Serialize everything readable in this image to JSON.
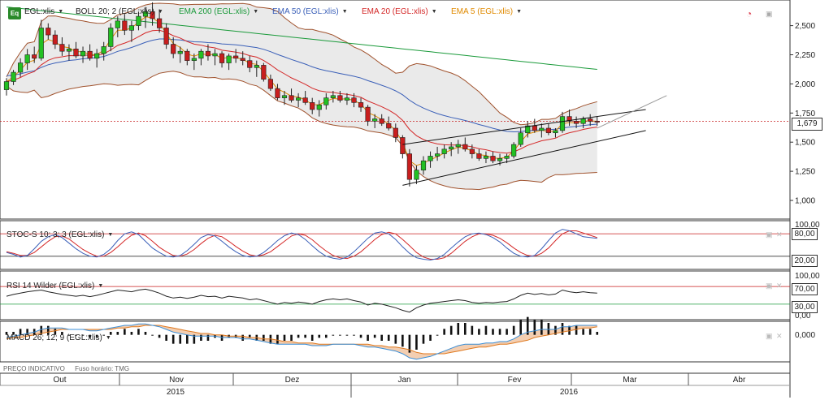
{
  "main_legend": {
    "symbol": "EGL:xlis",
    "items": [
      {
        "label": "BOLL 20; 2 (EGL:xlis)",
        "color": "#333333"
      },
      {
        "label": "EMA 200 (EGL:xlis)",
        "color": "#1a9a3a"
      },
      {
        "label": "EMA 50 (EGL:xlis)",
        "color": "#3a5fb8"
      },
      {
        "label": "EMA 20 (EGL:xlis)",
        "color": "#d42828"
      },
      {
        "label": "EMA 5 (EGL:xlis)",
        "color": "#e08a00"
      }
    ]
  },
  "badge": "Eq",
  "last_price_label": "1,679",
  "stoch": {
    "title": "STOC-S 10; 3; 3 (EGL:xlis)",
    "upper_label": "80,00",
    "lower_label": "20,00",
    "top_label": "100,00",
    "upper_level": 80,
    "lower_level": 20
  },
  "rsi": {
    "title": "RSI 14 Wilder (EGL:xlis)",
    "upper_label": "70,00",
    "lower_label": "30,00",
    "top_label": "100,00",
    "bottom_label": "0,00",
    "upper_level": 70,
    "lower_level": 30
  },
  "macd": {
    "title": "MACD 26; 12; 9 (EGL:xlis)",
    "zero_label": "0,000"
  },
  "footer": {
    "indicator": "PREÇO INDICATIVO",
    "timezone": "Fuso horário: TMG"
  },
  "x_axis": {
    "months": [
      "Out",
      "Nov",
      "Dez",
      "Jan",
      "Fev",
      "Mar",
      "Abr"
    ],
    "years": [
      "2015",
      "2016"
    ]
  },
  "colors": {
    "up": "#22c022",
    "down": "#c81e1e",
    "boll": "#a0522d",
    "boll_fill": "#e8e8e8",
    "ema200": "#1a9a3a",
    "ema50": "#3a5fb8",
    "ema20": "#d42828",
    "ema5": "#e08a00",
    "ref_line": "#c81e1e"
  },
  "chart_data": [
    {
      "type": "candlestick",
      "title": "EGL:xlis",
      "y_ticks": [
        "2,500",
        "2,250",
        "2,000",
        "1,750",
        "1,500",
        "1,250",
        "1,000"
      ],
      "ylim": [
        0.84,
        2.72
      ],
      "last_price": 1.679,
      "candles": [
        [
          1.95,
          2.05,
          1.9,
          2.02
        ],
        [
          2.02,
          2.12,
          1.99,
          2.1
        ],
        [
          2.1,
          2.22,
          2.06,
          2.18
        ],
        [
          2.18,
          2.3,
          2.12,
          2.25
        ],
        [
          2.25,
          2.32,
          2.18,
          2.22
        ],
        [
          2.22,
          2.55,
          2.2,
          2.48
        ],
        [
          2.48,
          2.52,
          2.38,
          2.42
        ],
        [
          2.42,
          2.46,
          2.3,
          2.34
        ],
        [
          2.34,
          2.4,
          2.24,
          2.28
        ],
        [
          2.28,
          2.34,
          2.2,
          2.3
        ],
        [
          2.3,
          2.36,
          2.22,
          2.24
        ],
        [
          2.24,
          2.32,
          2.18,
          2.28
        ],
        [
          2.28,
          2.34,
          2.2,
          2.22
        ],
        [
          2.22,
          2.3,
          2.14,
          2.26
        ],
        [
          2.26,
          2.36,
          2.2,
          2.32
        ],
        [
          2.32,
          2.52,
          2.28,
          2.48
        ],
        [
          2.48,
          2.58,
          2.4,
          2.54
        ],
        [
          2.54,
          2.6,
          2.42,
          2.46
        ],
        [
          2.46,
          2.54,
          2.36,
          2.5
        ],
        [
          2.5,
          2.62,
          2.46,
          2.58
        ],
        [
          2.58,
          2.66,
          2.48,
          2.62
        ],
        [
          2.62,
          2.7,
          2.5,
          2.56
        ],
        [
          2.56,
          2.64,
          2.44,
          2.48
        ],
        [
          2.48,
          2.52,
          2.3,
          2.34
        ],
        [
          2.34,
          2.4,
          2.22,
          2.26
        ],
        [
          2.26,
          2.32,
          2.18,
          2.28
        ],
        [
          2.28,
          2.3,
          2.16,
          2.2
        ],
        [
          2.2,
          2.26,
          2.12,
          2.22
        ],
        [
          2.22,
          2.3,
          2.16,
          2.28
        ],
        [
          2.28,
          2.34,
          2.2,
          2.24
        ],
        [
          2.24,
          2.3,
          2.16,
          2.26
        ],
        [
          2.26,
          2.28,
          2.14,
          2.18
        ],
        [
          2.18,
          2.26,
          2.12,
          2.24
        ],
        [
          2.24,
          2.3,
          2.18,
          2.22
        ],
        [
          2.22,
          2.28,
          2.16,
          2.2
        ],
        [
          2.2,
          2.24,
          2.1,
          2.14
        ],
        [
          2.14,
          2.2,
          2.06,
          2.16
        ],
        [
          2.16,
          2.18,
          2.02,
          2.04
        ],
        [
          2.04,
          2.08,
          1.94,
          1.96
        ],
        [
          1.96,
          2.0,
          1.86,
          1.88
        ],
        [
          1.88,
          1.94,
          1.82,
          1.9
        ],
        [
          1.9,
          1.96,
          1.84,
          1.86
        ],
        [
          1.86,
          1.92,
          1.8,
          1.88
        ],
        [
          1.88,
          1.94,
          1.82,
          1.84
        ],
        [
          1.84,
          1.88,
          1.74,
          1.78
        ],
        [
          1.78,
          1.86,
          1.72,
          1.82
        ],
        [
          1.82,
          1.92,
          1.78,
          1.88
        ],
        [
          1.88,
          1.94,
          1.84,
          1.9
        ],
        [
          1.9,
          1.94,
          1.84,
          1.86
        ],
        [
          1.86,
          1.92,
          1.82,
          1.88
        ],
        [
          1.88,
          1.92,
          1.8,
          1.84
        ],
        [
          1.84,
          1.88,
          1.76,
          1.8
        ],
        [
          1.8,
          1.82,
          1.64,
          1.68
        ],
        [
          1.68,
          1.74,
          1.62,
          1.7
        ],
        [
          1.7,
          1.74,
          1.64,
          1.66
        ],
        [
          1.66,
          1.72,
          1.6,
          1.62
        ],
        [
          1.62,
          1.66,
          1.5,
          1.54
        ],
        [
          1.54,
          1.56,
          1.36,
          1.4
        ],
        [
          1.4,
          1.44,
          1.12,
          1.18
        ],
        [
          1.18,
          1.3,
          1.14,
          1.26
        ],
        [
          1.26,
          1.38,
          1.22,
          1.34
        ],
        [
          1.34,
          1.42,
          1.28,
          1.38
        ],
        [
          1.38,
          1.46,
          1.34,
          1.4
        ],
        [
          1.4,
          1.48,
          1.36,
          1.44
        ],
        [
          1.44,
          1.5,
          1.38,
          1.46
        ],
        [
          1.46,
          1.52,
          1.4,
          1.48
        ],
        [
          1.48,
          1.54,
          1.42,
          1.44
        ],
        [
          1.44,
          1.48,
          1.36,
          1.4
        ],
        [
          1.4,
          1.44,
          1.34,
          1.36
        ],
        [
          1.36,
          1.42,
          1.32,
          1.38
        ],
        [
          1.38,
          1.42,
          1.32,
          1.34
        ],
        [
          1.34,
          1.4,
          1.3,
          1.36
        ],
        [
          1.36,
          1.4,
          1.32,
          1.38
        ],
        [
          1.38,
          1.5,
          1.36,
          1.48
        ],
        [
          1.48,
          1.62,
          1.46,
          1.58
        ],
        [
          1.58,
          1.68,
          1.54,
          1.64
        ],
        [
          1.64,
          1.7,
          1.58,
          1.6
        ],
        [
          1.6,
          1.66,
          1.54,
          1.62
        ],
        [
          1.62,
          1.66,
          1.56,
          1.58
        ],
        [
          1.58,
          1.62,
          1.54,
          1.6
        ],
        [
          1.6,
          1.76,
          1.58,
          1.72
        ],
        [
          1.72,
          1.78,
          1.64,
          1.68
        ],
        [
          1.68,
          1.72,
          1.62,
          1.66
        ],
        [
          1.66,
          1.72,
          1.62,
          1.7
        ],
        [
          1.7,
          1.74,
          1.64,
          1.68
        ],
        [
          1.68,
          1.72,
          1.64,
          1.679
        ]
      ],
      "trendlines": [
        {
          "name": "channel upper",
          "from": [
            57,
            1.48
          ],
          "to": [
            92,
            1.78
          ]
        },
        {
          "name": "channel lower",
          "from": [
            57,
            1.13
          ],
          "to": [
            92,
            1.6
          ]
        },
        {
          "name": "projection",
          "from": [
            85,
            1.62
          ],
          "to": [
            95,
            1.9
          ]
        }
      ]
    },
    {
      "type": "line",
      "title": "STOC-S 10; 3; 3",
      "ylim": [
        0,
        100
      ],
      "series": [
        {
          "name": "%K",
          "values": [
            30,
            25,
            18,
            22,
            40,
            60,
            72,
            78,
            70,
            55,
            40,
            28,
            20,
            18,
            25,
            40,
            62,
            80,
            85,
            78,
            60,
            42,
            30,
            20,
            18,
            22,
            35,
            52,
            70,
            78,
            74,
            60,
            45,
            32,
            22,
            18,
            20,
            30,
            45,
            62,
            75,
            82,
            78,
            65,
            48,
            32,
            20,
            15,
            12,
            18,
            32,
            50,
            68,
            82,
            85,
            80,
            65,
            45,
            28,
            16,
            12,
            10,
            14,
            25,
            42,
            58,
            72,
            80,
            82,
            78,
            70,
            58,
            42,
            28,
            20,
            18,
            22,
            40,
            62,
            82,
            92,
            88,
            80,
            72,
            70,
            68
          ]
        },
        {
          "name": "%D",
          "values": [
            32,
            28,
            22,
            22,
            30,
            45,
            60,
            72,
            74,
            66,
            52,
            38,
            28,
            20,
            20,
            30,
            45,
            62,
            76,
            82,
            75,
            60,
            44,
            32,
            22,
            20,
            26,
            38,
            54,
            68,
            76,
            72,
            60,
            46,
            34,
            24,
            20,
            24,
            32,
            46,
            60,
            74,
            80,
            76,
            64,
            48,
            34,
            22,
            16,
            14,
            20,
            32,
            48,
            65,
            78,
            84,
            80,
            65,
            48,
            30,
            18,
            12,
            12,
            16,
            28,
            44,
            60,
            72,
            80,
            80,
            76,
            68,
            56,
            42,
            30,
            22,
            20,
            28,
            42,
            62,
            80,
            88,
            88,
            82,
            76,
            70
          ]
        }
      ]
    },
    {
      "type": "line",
      "title": "RSI 14 Wilder",
      "ylim": [
        0,
        100
      ],
      "series": [
        {
          "name": "RSI",
          "values": [
            48,
            52,
            55,
            58,
            60,
            62,
            58,
            55,
            52,
            50,
            48,
            50,
            47,
            50,
            54,
            58,
            62,
            60,
            58,
            62,
            64,
            60,
            55,
            48,
            44,
            46,
            43,
            46,
            50,
            47,
            48,
            44,
            48,
            46,
            44,
            40,
            42,
            38,
            34,
            30,
            34,
            32,
            35,
            33,
            30,
            36,
            40,
            42,
            40,
            42,
            38,
            35,
            28,
            32,
            30,
            26,
            22,
            16,
            12,
            22,
            28,
            32,
            34,
            36,
            38,
            40,
            38,
            34,
            32,
            34,
            33,
            35,
            36,
            42,
            50,
            55,
            52,
            54,
            51,
            53,
            62,
            58,
            56,
            58,
            56,
            55
          ]
        }
      ]
    },
    {
      "type": "line",
      "title": "MACD 26; 12; 9",
      "series": [
        {
          "name": "MACD",
          "values": [
            -0.02,
            -0.01,
            0.0,
            0.01,
            0.02,
            0.04,
            0.05,
            0.05,
            0.05,
            0.04,
            0.04,
            0.04,
            0.03,
            0.03,
            0.04,
            0.05,
            0.06,
            0.07,
            0.07,
            0.08,
            0.08,
            0.07,
            0.06,
            0.04,
            0.02,
            0.01,
            0.0,
            -0.01,
            -0.01,
            -0.01,
            -0.01,
            -0.02,
            -0.02,
            -0.02,
            -0.03,
            -0.03,
            -0.04,
            -0.05,
            -0.06,
            -0.07,
            -0.07,
            -0.07,
            -0.07,
            -0.07,
            -0.08,
            -0.08,
            -0.08,
            -0.07,
            -0.07,
            -0.07,
            -0.07,
            -0.08,
            -0.09,
            -0.09,
            -0.1,
            -0.11,
            -0.12,
            -0.14,
            -0.17,
            -0.18,
            -0.17,
            -0.16,
            -0.14,
            -0.12,
            -0.1,
            -0.08,
            -0.07,
            -0.07,
            -0.07,
            -0.06,
            -0.06,
            -0.05,
            -0.05,
            -0.03,
            0.0,
            0.02,
            0.03,
            0.04,
            0.04,
            0.04,
            0.06,
            0.06,
            0.07,
            0.07,
            0.07,
            0.07
          ]
        },
        {
          "name": "Signal",
          "values": [
            -0.03,
            -0.02,
            -0.02,
            -0.01,
            0.0,
            0.01,
            0.02,
            0.03,
            0.04,
            0.04,
            0.04,
            0.04,
            0.04,
            0.04,
            0.04,
            0.04,
            0.05,
            0.05,
            0.06,
            0.06,
            0.07,
            0.07,
            0.07,
            0.06,
            0.05,
            0.04,
            0.03,
            0.02,
            0.01,
            0.01,
            0.0,
            0.0,
            -0.01,
            -0.01,
            -0.01,
            -0.02,
            -0.02,
            -0.03,
            -0.03,
            -0.04,
            -0.05,
            -0.05,
            -0.06,
            -0.06,
            -0.06,
            -0.07,
            -0.07,
            -0.07,
            -0.07,
            -0.07,
            -0.07,
            -0.07,
            -0.07,
            -0.08,
            -0.08,
            -0.09,
            -0.09,
            -0.1,
            -0.11,
            -0.13,
            -0.14,
            -0.14,
            -0.14,
            -0.14,
            -0.13,
            -0.12,
            -0.11,
            -0.1,
            -0.09,
            -0.09,
            -0.08,
            -0.07,
            -0.07,
            -0.06,
            -0.05,
            -0.04,
            -0.02,
            -0.01,
            0.0,
            0.01,
            0.02,
            0.03,
            0.04,
            0.05,
            0.05,
            0.06
          ]
        }
      ]
    }
  ]
}
